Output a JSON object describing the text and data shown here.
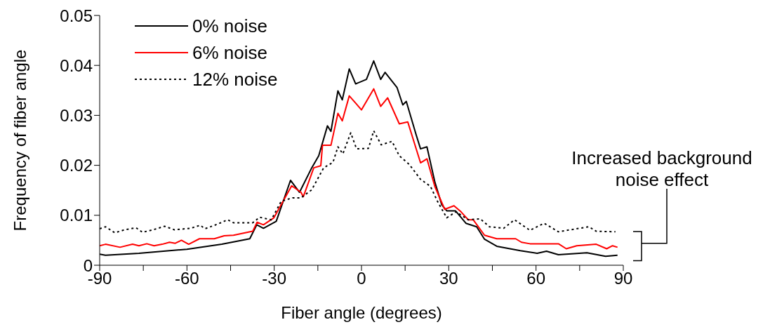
{
  "chart_data": {
    "type": "line",
    "xlabel": "Fiber angle (degrees)",
    "ylabel": "Frequency of fiber angle",
    "xlim": [
      -90,
      90
    ],
    "xticks": [
      -90,
      {
        "value": -75,
        "label": null
      },
      -60,
      {
        "value": -45,
        "label": null
      },
      -30,
      {
        "value": -15,
        "label": null
      },
      0,
      {
        "value": 15,
        "label": null
      },
      30,
      {
        "value": 45,
        "label": null
      },
      60,
      {
        "value": 75,
        "label": null
      },
      90
    ],
    "ylim": [
      0,
      0.05
    ],
    "yticks": [
      0,
      0.01,
      0.02,
      0.03,
      0.04,
      0.05
    ],
    "grid": false,
    "legend": "top left",
    "marker": "none",
    "annotations": [
      "Increased background noise effect"
    ],
    "series": [
      {
        "name": "0% noise",
        "color": "#000000",
        "line_style": "solid",
        "x": [
          -90,
          -88,
          -76.5,
          -60,
          -48,
          -38.4,
          -36,
          -33.7,
          -29.3,
          -24.4,
          -21.3,
          -17.1,
          -14.7,
          -11.7,
          -10.5,
          -8.1,
          -6.6,
          -4.2,
          -2,
          1.7,
          4.2,
          6.6,
          8.1,
          12.2,
          14.2,
          15.4,
          18.8,
          20.3,
          22.5,
          25.2,
          27.6,
          29.3,
          32.3,
          35.9,
          39.6,
          42.3,
          46.5,
          54.6,
          60.4,
          63.6,
          67.7,
          77.5,
          83.9,
          88
        ],
        "values": [
          0.0022,
          0.002,
          0.0024,
          0.0032,
          0.0042,
          0.0053,
          0.0081,
          0.0074,
          0.0088,
          0.017,
          0.0146,
          0.0195,
          0.0219,
          0.0279,
          0.0268,
          0.0349,
          0.0331,
          0.0393,
          0.0363,
          0.0372,
          0.0409,
          0.0372,
          0.0386,
          0.0356,
          0.0321,
          0.0328,
          0.0261,
          0.0233,
          0.0237,
          0.0167,
          0.0121,
          0.0109,
          0.0109,
          0.0084,
          0.0077,
          0.0052,
          0.0038,
          0.0029,
          0.0024,
          0.0028,
          0.0021,
          0.0025,
          0.0018,
          0.002
        ]
      },
      {
        "name": "6% noise",
        "color": "#ff0000",
        "line_style": "solid",
        "x": [
          -90,
          -88,
          -83,
          -78.7,
          -76.5,
          -73.8,
          -71.3,
          -68.5,
          -66,
          -64,
          -61.9,
          -59.4,
          -55.7,
          -50.6,
          -47.2,
          -44,
          -37.4,
          -35.9,
          -33.7,
          -30.1,
          -24,
          -20.8,
          -20,
          -16.4,
          -14,
          -13.4,
          -10.5,
          -8.1,
          -6.6,
          -4.2,
          0,
          4.2,
          6.6,
          9,
          13,
          15.9,
          20.3,
          22.5,
          25.2,
          28.6,
          31.8,
          34.2,
          36.7,
          38.4,
          42.3,
          46.5,
          53,
          55,
          57.9,
          67.7,
          70.4,
          74,
          80.7,
          84.3,
          86.3,
          88
        ],
        "values": [
          0.0039,
          0.0042,
          0.0036,
          0.0042,
          0.0039,
          0.0043,
          0.0039,
          0.0042,
          0.0046,
          0.0044,
          0.005,
          0.0042,
          0.0053,
          0.0053,
          0.0059,
          0.006,
          0.0068,
          0.0086,
          0.0081,
          0.0095,
          0.0159,
          0.0146,
          0.0137,
          0.0195,
          0.0199,
          0.024,
          0.024,
          0.0304,
          0.0289,
          0.0339,
          0.0311,
          0.0353,
          0.0318,
          0.0335,
          0.0283,
          0.0287,
          0.0205,
          0.0213,
          0.0158,
          0.0112,
          0.0119,
          0.0107,
          0.0091,
          0.0091,
          0.006,
          0.0053,
          0.0053,
          0.0046,
          0.0043,
          0.0043,
          0.0033,
          0.0039,
          0.0042,
          0.0033,
          0.0039,
          0.0036
        ]
      },
      {
        "name": "12% noise",
        "color": "#000000",
        "line_style": "dotted",
        "x": [
          -90,
          -88,
          -84.8,
          -81.4,
          -77.5,
          -75.3,
          -71.6,
          -67.7,
          -64.3,
          -58.7,
          -55.4,
          -53.8,
          -49.6,
          -46,
          -44,
          -37.4,
          -35,
          -31,
          -27.6,
          -23.7,
          -20.8,
          -17.1,
          -13,
          -9.8,
          -8.1,
          -6.4,
          -3.7,
          -1.7,
          2.4,
          4.2,
          6.8,
          10.5,
          13,
          16.4,
          20.3,
          23.7,
          26.2,
          29.3,
          32.5,
          36.7,
          40.8,
          44,
          48.9,
          52.6,
          57.9,
          62.8,
          67.7,
          78.2,
          80.7,
          87.3
        ],
        "values": [
          0.0073,
          0.0077,
          0.0065,
          0.0071,
          0.0075,
          0.0066,
          0.0071,
          0.0078,
          0.0071,
          0.0074,
          0.008,
          0.0073,
          0.0082,
          0.0091,
          0.0085,
          0.0085,
          0.0096,
          0.0091,
          0.0128,
          0.0135,
          0.0135,
          0.0151,
          0.0195,
          0.0206,
          0.0237,
          0.0223,
          0.0265,
          0.0233,
          0.0234,
          0.0269,
          0.0241,
          0.0248,
          0.0219,
          0.0202,
          0.0172,
          0.0158,
          0.0127,
          0.0095,
          0.0107,
          0.0091,
          0.0093,
          0.0077,
          0.0074,
          0.0091,
          0.007,
          0.0084,
          0.0067,
          0.0077,
          0.0068,
          0.0067
        ]
      }
    ]
  }
}
